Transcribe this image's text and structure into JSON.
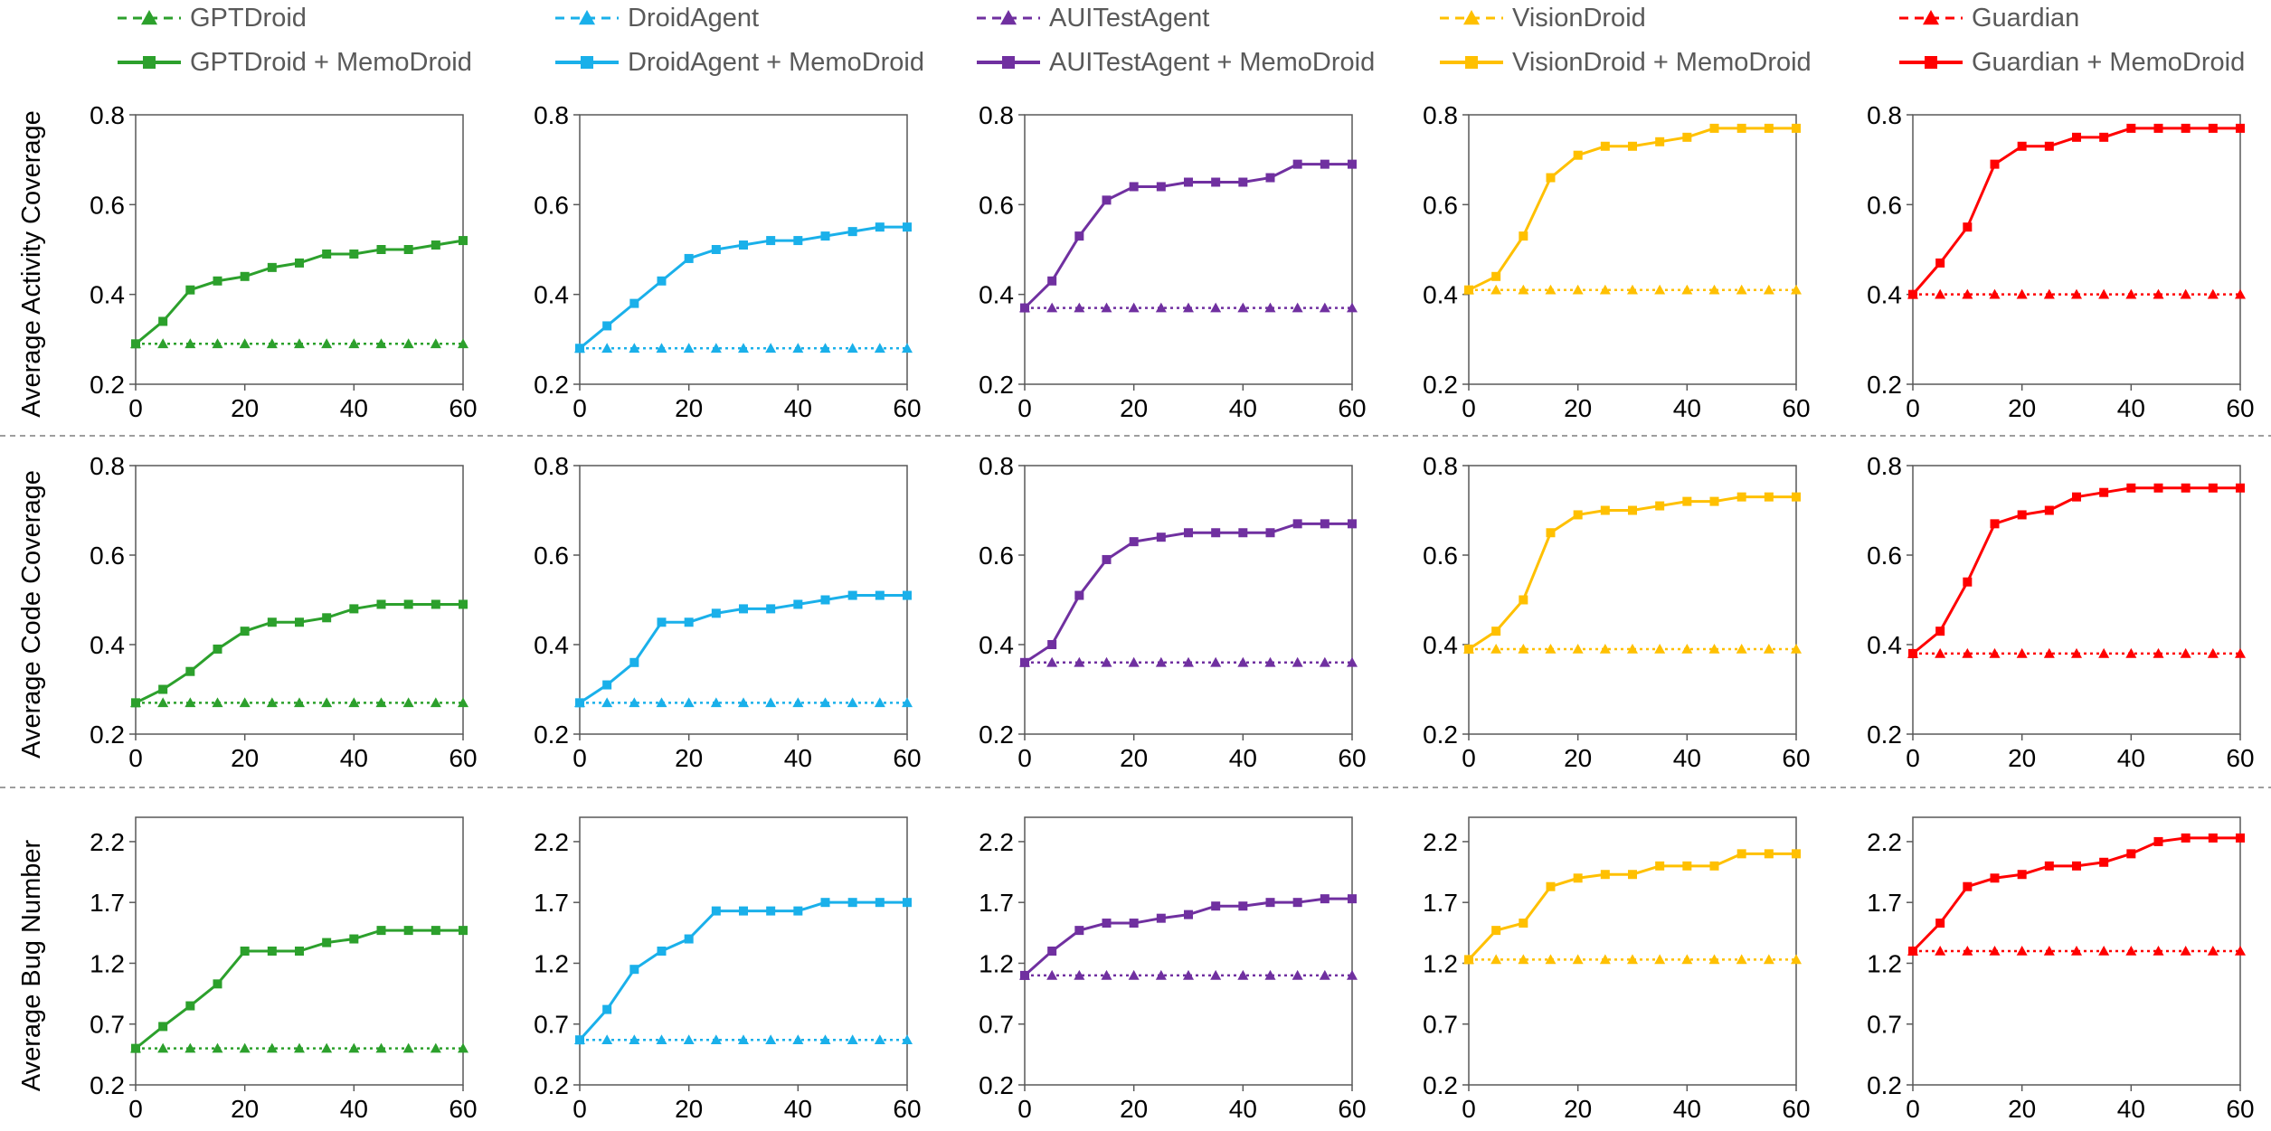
{
  "legend": {
    "items": [
      {
        "label": "GPTDroid",
        "color": "#2ca02c",
        "style": "baseline"
      },
      {
        "label": "DroidAgent",
        "color": "#1ab0ea",
        "style": "baseline"
      },
      {
        "label": "AUITestAgent",
        "color": "#7030a0",
        "style": "baseline"
      },
      {
        "label": "VisionDroid",
        "color": "#ffc000",
        "style": "baseline"
      },
      {
        "label": "Guardian",
        "color": "#ff0000",
        "style": "baseline"
      },
      {
        "label": "GPTDroid + MemoDroid",
        "color": "#2ca02c",
        "style": "memo"
      },
      {
        "label": "DroidAgent + MemoDroid",
        "color": "#1ab0ea",
        "style": "memo"
      },
      {
        "label": "AUITestAgent + MemoDroid",
        "color": "#7030a0",
        "style": "memo"
      },
      {
        "label": "VisionDroid + MemoDroid",
        "color": "#ffc000",
        "style": "memo"
      },
      {
        "label": "Guardian + MemoDroid",
        "color": "#ff0000",
        "style": "memo"
      }
    ]
  },
  "chart_data": [
    {
      "type": "line",
      "row_label": "Average Activity Coverage",
      "x": [
        0,
        5,
        10,
        15,
        20,
        25,
        30,
        35,
        40,
        45,
        50,
        55,
        60
      ],
      "xlim": [
        0,
        60
      ],
      "xticks": [
        "0",
        "20",
        "40",
        "60"
      ],
      "ylim": [
        0.2,
        0.8
      ],
      "yticks": [
        "0.2",
        "0.4",
        "0.6",
        "0.8"
      ],
      "color": "#2ca02c",
      "series": [
        {
          "name": "GPTDroid",
          "style": "baseline",
          "values": [
            0.29,
            0.29,
            0.29,
            0.29,
            0.29,
            0.29,
            0.29,
            0.29,
            0.29,
            0.29,
            0.29,
            0.29,
            0.29
          ]
        },
        {
          "name": "GPTDroid + MemoDroid",
          "style": "memo",
          "values": [
            0.29,
            0.34,
            0.41,
            0.43,
            0.44,
            0.46,
            0.47,
            0.49,
            0.49,
            0.5,
            0.5,
            0.51,
            0.52
          ]
        }
      ]
    },
    {
      "type": "line",
      "x": [
        0,
        5,
        10,
        15,
        20,
        25,
        30,
        35,
        40,
        45,
        50,
        55,
        60
      ],
      "xlim": [
        0,
        60
      ],
      "xticks": [
        "0",
        "20",
        "40",
        "60"
      ],
      "ylim": [
        0.2,
        0.8
      ],
      "yticks": [
        "0.2",
        "0.4",
        "0.6",
        "0.8"
      ],
      "color": "#1ab0ea",
      "series": [
        {
          "name": "DroidAgent",
          "style": "baseline",
          "values": [
            0.28,
            0.28,
            0.28,
            0.28,
            0.28,
            0.28,
            0.28,
            0.28,
            0.28,
            0.28,
            0.28,
            0.28,
            0.28
          ]
        },
        {
          "name": "DroidAgent + MemoDroid",
          "style": "memo",
          "values": [
            0.28,
            0.33,
            0.38,
            0.43,
            0.48,
            0.5,
            0.51,
            0.52,
            0.52,
            0.53,
            0.54,
            0.55,
            0.55
          ]
        }
      ]
    },
    {
      "type": "line",
      "x": [
        0,
        5,
        10,
        15,
        20,
        25,
        30,
        35,
        40,
        45,
        50,
        55,
        60
      ],
      "xlim": [
        0,
        60
      ],
      "xticks": [
        "0",
        "20",
        "40",
        "60"
      ],
      "ylim": [
        0.2,
        0.8
      ],
      "yticks": [
        "0.2",
        "0.4",
        "0.6",
        "0.8"
      ],
      "color": "#7030a0",
      "series": [
        {
          "name": "AUITestAgent",
          "style": "baseline",
          "values": [
            0.37,
            0.37,
            0.37,
            0.37,
            0.37,
            0.37,
            0.37,
            0.37,
            0.37,
            0.37,
            0.37,
            0.37,
            0.37
          ]
        },
        {
          "name": "AUITestAgent + MemoDroid",
          "style": "memo",
          "values": [
            0.37,
            0.43,
            0.53,
            0.61,
            0.64,
            0.64,
            0.65,
            0.65,
            0.65,
            0.66,
            0.69,
            0.69,
            0.69
          ]
        }
      ]
    },
    {
      "type": "line",
      "x": [
        0,
        5,
        10,
        15,
        20,
        25,
        30,
        35,
        40,
        45,
        50,
        55,
        60
      ],
      "xlim": [
        0,
        60
      ],
      "xticks": [
        "0",
        "20",
        "40",
        "60"
      ],
      "ylim": [
        0.2,
        0.8
      ],
      "yticks": [
        "0.2",
        "0.4",
        "0.6",
        "0.8"
      ],
      "color": "#ffc000",
      "series": [
        {
          "name": "VisionDroid",
          "style": "baseline",
          "values": [
            0.41,
            0.41,
            0.41,
            0.41,
            0.41,
            0.41,
            0.41,
            0.41,
            0.41,
            0.41,
            0.41,
            0.41,
            0.41
          ]
        },
        {
          "name": "VisionDroid + MemoDroid",
          "style": "memo",
          "values": [
            0.41,
            0.44,
            0.53,
            0.66,
            0.71,
            0.73,
            0.73,
            0.74,
            0.75,
            0.77,
            0.77,
            0.77,
            0.77
          ]
        }
      ]
    },
    {
      "type": "line",
      "x": [
        0,
        5,
        10,
        15,
        20,
        25,
        30,
        35,
        40,
        45,
        50,
        55,
        60
      ],
      "xlim": [
        0,
        60
      ],
      "xticks": [
        "0",
        "20",
        "40",
        "60"
      ],
      "ylim": [
        0.2,
        0.8
      ],
      "yticks": [
        "0.2",
        "0.4",
        "0.6",
        "0.8"
      ],
      "color": "#ff0000",
      "series": [
        {
          "name": "Guardian",
          "style": "baseline",
          "values": [
            0.4,
            0.4,
            0.4,
            0.4,
            0.4,
            0.4,
            0.4,
            0.4,
            0.4,
            0.4,
            0.4,
            0.4,
            0.4
          ]
        },
        {
          "name": "Guardian + MemoDroid",
          "style": "memo",
          "values": [
            0.4,
            0.47,
            0.55,
            0.69,
            0.73,
            0.73,
            0.75,
            0.75,
            0.77,
            0.77,
            0.77,
            0.77,
            0.77
          ]
        }
      ]
    },
    {
      "type": "line",
      "row_label": "Average Code Coverage",
      "x": [
        0,
        5,
        10,
        15,
        20,
        25,
        30,
        35,
        40,
        45,
        50,
        55,
        60
      ],
      "xlim": [
        0,
        60
      ],
      "xticks": [
        "0",
        "20",
        "40",
        "60"
      ],
      "ylim": [
        0.2,
        0.8
      ],
      "yticks": [
        "0.2",
        "0.4",
        "0.6",
        "0.8"
      ],
      "color": "#2ca02c",
      "series": [
        {
          "name": "GPTDroid",
          "style": "baseline",
          "values": [
            0.27,
            0.27,
            0.27,
            0.27,
            0.27,
            0.27,
            0.27,
            0.27,
            0.27,
            0.27,
            0.27,
            0.27,
            0.27
          ]
        },
        {
          "name": "GPTDroid + MemoDroid",
          "style": "memo",
          "values": [
            0.27,
            0.3,
            0.34,
            0.39,
            0.43,
            0.45,
            0.45,
            0.46,
            0.48,
            0.49,
            0.49,
            0.49,
            0.49
          ]
        }
      ]
    },
    {
      "type": "line",
      "x": [
        0,
        5,
        10,
        15,
        20,
        25,
        30,
        35,
        40,
        45,
        50,
        55,
        60
      ],
      "xlim": [
        0,
        60
      ],
      "xticks": [
        "0",
        "20",
        "40",
        "60"
      ],
      "ylim": [
        0.2,
        0.8
      ],
      "yticks": [
        "0.2",
        "0.4",
        "0.6",
        "0.8"
      ],
      "color": "#1ab0ea",
      "series": [
        {
          "name": "DroidAgent",
          "style": "baseline",
          "values": [
            0.27,
            0.27,
            0.27,
            0.27,
            0.27,
            0.27,
            0.27,
            0.27,
            0.27,
            0.27,
            0.27,
            0.27,
            0.27
          ]
        },
        {
          "name": "DroidAgent + MemoDroid",
          "style": "memo",
          "values": [
            0.27,
            0.31,
            0.36,
            0.45,
            0.45,
            0.47,
            0.48,
            0.48,
            0.49,
            0.5,
            0.51,
            0.51,
            0.51
          ]
        }
      ]
    },
    {
      "type": "line",
      "x": [
        0,
        5,
        10,
        15,
        20,
        25,
        30,
        35,
        40,
        45,
        50,
        55,
        60
      ],
      "xlim": [
        0,
        60
      ],
      "xticks": [
        "0",
        "20",
        "40",
        "60"
      ],
      "ylim": [
        0.2,
        0.8
      ],
      "yticks": [
        "0.2",
        "0.4",
        "0.6",
        "0.8"
      ],
      "color": "#7030a0",
      "series": [
        {
          "name": "AUITestAgent",
          "style": "baseline",
          "values": [
            0.36,
            0.36,
            0.36,
            0.36,
            0.36,
            0.36,
            0.36,
            0.36,
            0.36,
            0.36,
            0.36,
            0.36,
            0.36
          ]
        },
        {
          "name": "AUITestAgent + MemoDroid",
          "style": "memo",
          "values": [
            0.36,
            0.4,
            0.51,
            0.59,
            0.63,
            0.64,
            0.65,
            0.65,
            0.65,
            0.65,
            0.67,
            0.67,
            0.67
          ]
        }
      ]
    },
    {
      "type": "line",
      "x": [
        0,
        5,
        10,
        15,
        20,
        25,
        30,
        35,
        40,
        45,
        50,
        55,
        60
      ],
      "xlim": [
        0,
        60
      ],
      "xticks": [
        "0",
        "20",
        "40",
        "60"
      ],
      "ylim": [
        0.2,
        0.8
      ],
      "yticks": [
        "0.2",
        "0.4",
        "0.6",
        "0.8"
      ],
      "color": "#ffc000",
      "series": [
        {
          "name": "VisionDroid",
          "style": "baseline",
          "values": [
            0.39,
            0.39,
            0.39,
            0.39,
            0.39,
            0.39,
            0.39,
            0.39,
            0.39,
            0.39,
            0.39,
            0.39,
            0.39
          ]
        },
        {
          "name": "VisionDroid + MemoDroid",
          "style": "memo",
          "values": [
            0.39,
            0.43,
            0.5,
            0.65,
            0.69,
            0.7,
            0.7,
            0.71,
            0.72,
            0.72,
            0.73,
            0.73,
            0.73
          ]
        }
      ]
    },
    {
      "type": "line",
      "x": [
        0,
        5,
        10,
        15,
        20,
        25,
        30,
        35,
        40,
        45,
        50,
        55,
        60
      ],
      "xlim": [
        0,
        60
      ],
      "xticks": [
        "0",
        "20",
        "40",
        "60"
      ],
      "ylim": [
        0.2,
        0.8
      ],
      "yticks": [
        "0.2",
        "0.4",
        "0.6",
        "0.8"
      ],
      "color": "#ff0000",
      "series": [
        {
          "name": "Guardian",
          "style": "baseline",
          "values": [
            0.38,
            0.38,
            0.38,
            0.38,
            0.38,
            0.38,
            0.38,
            0.38,
            0.38,
            0.38,
            0.38,
            0.38,
            0.38
          ]
        },
        {
          "name": "Guardian + MemoDroid",
          "style": "memo",
          "values": [
            0.38,
            0.43,
            0.54,
            0.67,
            0.69,
            0.7,
            0.73,
            0.74,
            0.75,
            0.75,
            0.75,
            0.75,
            0.75
          ]
        }
      ]
    },
    {
      "type": "line",
      "row_label": "Average Bug Number",
      "x": [
        0,
        5,
        10,
        15,
        20,
        25,
        30,
        35,
        40,
        45,
        50,
        55,
        60
      ],
      "xlim": [
        0,
        60
      ],
      "xticks": [
        "0",
        "20",
        "40",
        "60"
      ],
      "ylim": [
        0.2,
        2.4
      ],
      "yticks": [
        "0.2",
        "0.7",
        "1.2",
        "1.7",
        "2.2"
      ],
      "color": "#2ca02c",
      "series": [
        {
          "name": "GPTDroid",
          "style": "baseline",
          "values": [
            0.5,
            0.5,
            0.5,
            0.5,
            0.5,
            0.5,
            0.5,
            0.5,
            0.5,
            0.5,
            0.5,
            0.5,
            0.5
          ]
        },
        {
          "name": "GPTDroid + MemoDroid",
          "style": "memo",
          "values": [
            0.5,
            0.68,
            0.85,
            1.03,
            1.3,
            1.3,
            1.3,
            1.37,
            1.4,
            1.47,
            1.47,
            1.47,
            1.47
          ]
        }
      ]
    },
    {
      "type": "line",
      "x": [
        0,
        5,
        10,
        15,
        20,
        25,
        30,
        35,
        40,
        45,
        50,
        55,
        60
      ],
      "xlim": [
        0,
        60
      ],
      "xticks": [
        "0",
        "20",
        "40",
        "60"
      ],
      "ylim": [
        0.2,
        2.4
      ],
      "yticks": [
        "0.2",
        "0.7",
        "1.2",
        "1.7",
        "2.2"
      ],
      "color": "#1ab0ea",
      "series": [
        {
          "name": "DroidAgent",
          "style": "baseline",
          "values": [
            0.57,
            0.57,
            0.57,
            0.57,
            0.57,
            0.57,
            0.57,
            0.57,
            0.57,
            0.57,
            0.57,
            0.57,
            0.57
          ]
        },
        {
          "name": "DroidAgent + MemoDroid",
          "style": "memo",
          "values": [
            0.57,
            0.82,
            1.15,
            1.3,
            1.4,
            1.63,
            1.63,
            1.63,
            1.63,
            1.7,
            1.7,
            1.7,
            1.7
          ]
        }
      ]
    },
    {
      "type": "line",
      "x": [
        0,
        5,
        10,
        15,
        20,
        25,
        30,
        35,
        40,
        45,
        50,
        55,
        60
      ],
      "xlim": [
        0,
        60
      ],
      "xticks": [
        "0",
        "20",
        "40",
        "60"
      ],
      "ylim": [
        0.2,
        2.4
      ],
      "yticks": [
        "0.2",
        "0.7",
        "1.2",
        "1.7",
        "2.2"
      ],
      "color": "#7030a0",
      "series": [
        {
          "name": "AUITestAgent",
          "style": "baseline",
          "values": [
            1.1,
            1.1,
            1.1,
            1.1,
            1.1,
            1.1,
            1.1,
            1.1,
            1.1,
            1.1,
            1.1,
            1.1,
            1.1
          ]
        },
        {
          "name": "AUITestAgent + MemoDroid",
          "style": "memo",
          "values": [
            1.1,
            1.3,
            1.47,
            1.53,
            1.53,
            1.57,
            1.6,
            1.67,
            1.67,
            1.7,
            1.7,
            1.73,
            1.73
          ]
        }
      ]
    },
    {
      "type": "line",
      "x": [
        0,
        5,
        10,
        15,
        20,
        25,
        30,
        35,
        40,
        45,
        50,
        55,
        60
      ],
      "xlim": [
        0,
        60
      ],
      "xticks": [
        "0",
        "20",
        "40",
        "60"
      ],
      "ylim": [
        0.2,
        2.4
      ],
      "yticks": [
        "0.2",
        "0.7",
        "1.2",
        "1.7",
        "2.2"
      ],
      "color": "#ffc000",
      "series": [
        {
          "name": "VisionDroid",
          "style": "baseline",
          "values": [
            1.23,
            1.23,
            1.23,
            1.23,
            1.23,
            1.23,
            1.23,
            1.23,
            1.23,
            1.23,
            1.23,
            1.23,
            1.23
          ]
        },
        {
          "name": "VisionDroid + MemoDroid",
          "style": "memo",
          "values": [
            1.23,
            1.47,
            1.53,
            1.83,
            1.9,
            1.93,
            1.93,
            2.0,
            2.0,
            2.0,
            2.1,
            2.1,
            2.1
          ]
        }
      ]
    },
    {
      "type": "line",
      "x": [
        0,
        5,
        10,
        15,
        20,
        25,
        30,
        35,
        40,
        45,
        50,
        55,
        60
      ],
      "xlim": [
        0,
        60
      ],
      "xticks": [
        "0",
        "20",
        "40",
        "60"
      ],
      "ylim": [
        0.2,
        2.4
      ],
      "yticks": [
        "0.2",
        "0.7",
        "1.2",
        "1.7",
        "2.2"
      ],
      "color": "#ff0000",
      "series": [
        {
          "name": "Guardian",
          "style": "baseline",
          "values": [
            1.3,
            1.3,
            1.3,
            1.3,
            1.3,
            1.3,
            1.3,
            1.3,
            1.3,
            1.3,
            1.3,
            1.3,
            1.3
          ]
        },
        {
          "name": "Guardian + MemoDroid",
          "style": "memo",
          "values": [
            1.3,
            1.53,
            1.83,
            1.9,
            1.93,
            2.0,
            2.0,
            2.03,
            2.1,
            2.2,
            2.23,
            2.23,
            2.23
          ]
        }
      ]
    }
  ]
}
